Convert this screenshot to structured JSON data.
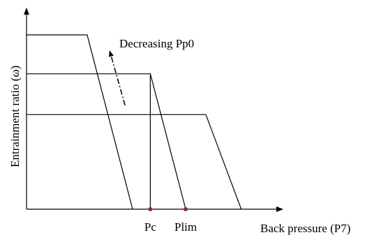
{
  "chart_data": {
    "type": "line",
    "xlabel": "Back pressure (P7)",
    "ylabel": "Entrainment ratio (ω)",
    "x_ticks": [
      {
        "label": "Pc",
        "x": 0.49
      },
      {
        "label": "Plim",
        "x": 0.63
      }
    ],
    "xlim": [
      0,
      1
    ],
    "ylim": [
      0,
      1
    ],
    "series": [
      {
        "points": [
          [
            0,
            0.94
          ],
          [
            0.24,
            0.94
          ],
          [
            0.42,
            0
          ]
        ]
      },
      {
        "points": [
          [
            0,
            0.73
          ],
          [
            0.49,
            0.73
          ],
          [
            0.63,
            0
          ]
        ]
      },
      {
        "points": [
          [
            0,
            0.51
          ],
          [
            0.71,
            0.51
          ],
          [
            0.85,
            0
          ]
        ]
      }
    ],
    "vertical_line": {
      "x": 0.49,
      "y_top": 0.73
    },
    "annotation": {
      "text": "Decreasing Pp0",
      "arrow_from": [
        0.39,
        0.56
      ],
      "arrow_to": [
        0.33,
        0.85
      ]
    },
    "grid": false,
    "legend": "none",
    "colors": {
      "line": "#000000",
      "marker": "#8b2a3a"
    }
  }
}
